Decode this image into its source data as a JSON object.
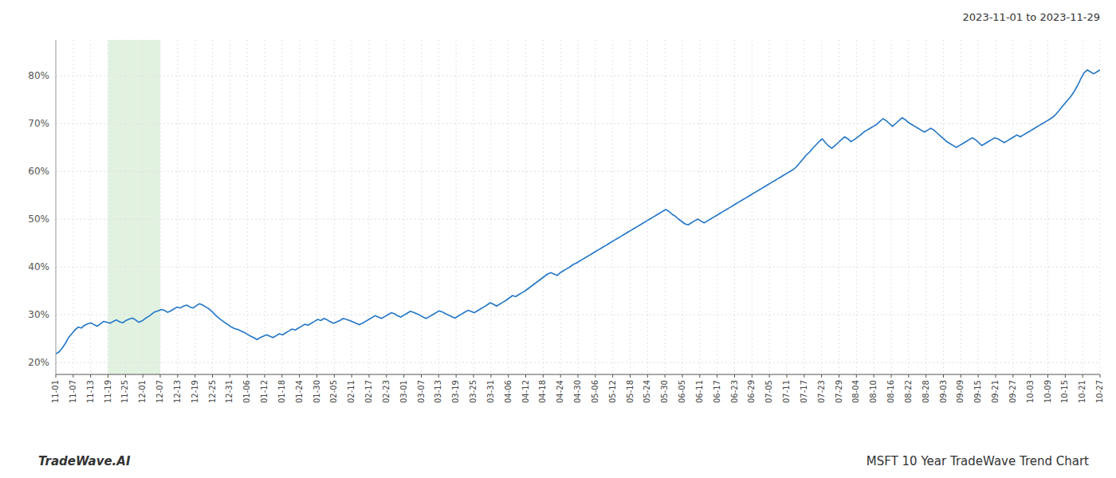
{
  "chart_data": {
    "type": "line",
    "title": "2023-11-01 to 2023-11-29",
    "annotations": [
      "TradeWave.AI",
      "MSFT 10 Year TradeWave Trend Chart"
    ],
    "color": "#2176c7",
    "grid": true,
    "band": {
      "x": [
        16.35,
        32.7
      ],
      "color": "#d4ecd4"
    },
    "xlim": [
      0,
      327
    ],
    "xticks": [
      {
        "value": 0,
        "label": "11-01"
      },
      {
        "value": 5.45,
        "label": "11-07"
      },
      {
        "value": 10.9,
        "label": "11-13"
      },
      {
        "value": 16.35,
        "label": "11-19"
      },
      {
        "value": 21.8,
        "label": "11-25"
      },
      {
        "value": 27.25,
        "label": "12-01"
      },
      {
        "value": 32.7,
        "label": "12-07"
      },
      {
        "value": 38.15,
        "label": "12-13"
      },
      {
        "value": 43.6,
        "label": "12-19"
      },
      {
        "value": 49.05,
        "label": "12-25"
      },
      {
        "value": 54.5,
        "label": "12-31"
      },
      {
        "value": 59.95,
        "label": "01-06"
      },
      {
        "value": 65.4,
        "label": "01-12"
      },
      {
        "value": 70.85,
        "label": "01-18"
      },
      {
        "value": 76.3,
        "label": "01-24"
      },
      {
        "value": 81.75,
        "label": "01-30"
      },
      {
        "value": 87.2,
        "label": "02-05"
      },
      {
        "value": 92.65,
        "label": "02-11"
      },
      {
        "value": 98.1,
        "label": "02-17"
      },
      {
        "value": 103.55,
        "label": "02-23"
      },
      {
        "value": 109,
        "label": "03-01"
      },
      {
        "value": 114.45,
        "label": "03-07"
      },
      {
        "value": 119.9,
        "label": "03-13"
      },
      {
        "value": 125.35,
        "label": "03-19"
      },
      {
        "value": 130.8,
        "label": "03-25"
      },
      {
        "value": 136.25,
        "label": "03-31"
      },
      {
        "value": 141.7,
        "label": "04-06"
      },
      {
        "value": 147.15,
        "label": "04-12"
      },
      {
        "value": 152.6,
        "label": "04-18"
      },
      {
        "value": 158.05,
        "label": "04-24"
      },
      {
        "value": 163.5,
        "label": "04-30"
      },
      {
        "value": 168.95,
        "label": "05-06"
      },
      {
        "value": 174.4,
        "label": "05-12"
      },
      {
        "value": 179.85,
        "label": "05-18"
      },
      {
        "value": 185.3,
        "label": "05-24"
      },
      {
        "value": 190.75,
        "label": "05-30"
      },
      {
        "value": 196.2,
        "label": "06-05"
      },
      {
        "value": 201.65,
        "label": "06-11"
      },
      {
        "value": 207.1,
        "label": "06-17"
      },
      {
        "value": 212.55,
        "label": "06-23"
      },
      {
        "value": 218,
        "label": "06-29"
      },
      {
        "value": 223.45,
        "label": "07-05"
      },
      {
        "value": 228.9,
        "label": "07-11"
      },
      {
        "value": 234.35,
        "label": "07-17"
      },
      {
        "value": 239.8,
        "label": "07-23"
      },
      {
        "value": 245.25,
        "label": "07-29"
      },
      {
        "value": 250.7,
        "label": "08-04"
      },
      {
        "value": 256.15,
        "label": "08-10"
      },
      {
        "value": 261.6,
        "label": "08-16"
      },
      {
        "value": 267.05,
        "label": "08-22"
      },
      {
        "value": 272.5,
        "label": "08-28"
      },
      {
        "value": 277.95,
        "label": "09-03"
      },
      {
        "value": 283.4,
        "label": "09-09"
      },
      {
        "value": 288.85,
        "label": "09-15"
      },
      {
        "value": 294.3,
        "label": "09-21"
      },
      {
        "value": 299.75,
        "label": "09-27"
      },
      {
        "value": 305.2,
        "label": "10-03"
      },
      {
        "value": 310.65,
        "label": "10-09"
      },
      {
        "value": 316.1,
        "label": "10-15"
      },
      {
        "value": 321.55,
        "label": "10-21"
      },
      {
        "value": 327,
        "label": "10-27"
      }
    ],
    "ylim": [
      0.175,
      0.875
    ],
    "yticks": [
      {
        "value": 0.2,
        "label": "20%"
      },
      {
        "value": 0.3,
        "label": "30%"
      },
      {
        "value": 0.4,
        "label": "40%"
      },
      {
        "value": 0.5,
        "label": "50%"
      },
      {
        "value": 0.6,
        "label": "60%"
      },
      {
        "value": 0.7,
        "label": "70%"
      },
      {
        "value": 0.8,
        "label": "80%"
      }
    ],
    "x": [
      0,
      1,
      2,
      3,
      4,
      5,
      6,
      7,
      8,
      9,
      10,
      11,
      12,
      13,
      14,
      15,
      16,
      17,
      18,
      19,
      20,
      21,
      22,
      23,
      24,
      25,
      26,
      27,
      28,
      29,
      30,
      31,
      32,
      33,
      34,
      35,
      36,
      37,
      38,
      39,
      40,
      41,
      42,
      43,
      44,
      45,
      46,
      47,
      48,
      49,
      50,
      51,
      52,
      53,
      54,
      55,
      56,
      57,
      58,
      59,
      60,
      61,
      62,
      63,
      64,
      65,
      66,
      67,
      68,
      69,
      70,
      71,
      72,
      73,
      74,
      75,
      76,
      77,
      78,
      79,
      80,
      81,
      82,
      83,
      84,
      85,
      86,
      87,
      88,
      89,
      90,
      91,
      92,
      93,
      94,
      95,
      96,
      97,
      98,
      99,
      100,
      101,
      102,
      103,
      104,
      105,
      106,
      107,
      108,
      109,
      110,
      111,
      112,
      113,
      114,
      115,
      116,
      117,
      118,
      119,
      120,
      121,
      122,
      123,
      124,
      125,
      126,
      127,
      128,
      129,
      130,
      131,
      132,
      133,
      134,
      135,
      136,
      137,
      138,
      139,
      140,
      141,
      142,
      143,
      144,
      145,
      146,
      147,
      148,
      149,
      150,
      151,
      152,
      153,
      154,
      155,
      156,
      157,
      158,
      159,
      160,
      161,
      162,
      163,
      164,
      165,
      166,
      167,
      168,
      169,
      170,
      171,
      172,
      173,
      174,
      175,
      176,
      177,
      178,
      179,
      180,
      181,
      182,
      183,
      184,
      185,
      186,
      187,
      188,
      189,
      190,
      191,
      192,
      193,
      194,
      195,
      196,
      197,
      198,
      199,
      200,
      201,
      202,
      203,
      204,
      205,
      206,
      207,
      208,
      209,
      210,
      211,
      212,
      213,
      214,
      215,
      216,
      217,
      218,
      219,
      220,
      221,
      222,
      223,
      224,
      225,
      226,
      227,
      228,
      229,
      230,
      231,
      232,
      233,
      234,
      235,
      236,
      237,
      238,
      239,
      240,
      241,
      242,
      243,
      244,
      245,
      246,
      247,
      248,
      249,
      250,
      251,
      252,
      253,
      254,
      255,
      256,
      257,
      258,
      259,
      260,
      261,
      262,
      263,
      264,
      265,
      266,
      267,
      268,
      269,
      270,
      271,
      272,
      273,
      274,
      275,
      276,
      277,
      278,
      279,
      280,
      281,
      282,
      283,
      284,
      285,
      286,
      287,
      288,
      289,
      290,
      291,
      292,
      293,
      294,
      295,
      296,
      297,
      298,
      299,
      300,
      301,
      302,
      303,
      304,
      305,
      306,
      307,
      308,
      309,
      310,
      311,
      312,
      313,
      314,
      315,
      316,
      317,
      318,
      319,
      320,
      321,
      322,
      323,
      324,
      325,
      326,
      327
    ],
    "values": [
      0.218,
      0.222,
      0.23,
      0.24,
      0.252,
      0.26,
      0.268,
      0.274,
      0.272,
      0.278,
      0.281,
      0.283,
      0.279,
      0.276,
      0.281,
      0.286,
      0.284,
      0.282,
      0.286,
      0.289,
      0.285,
      0.283,
      0.288,
      0.291,
      0.293,
      0.289,
      0.284,
      0.287,
      0.292,
      0.296,
      0.301,
      0.306,
      0.308,
      0.311,
      0.309,
      0.305,
      0.308,
      0.312,
      0.316,
      0.314,
      0.318,
      0.32,
      0.316,
      0.314,
      0.319,
      0.323,
      0.32,
      0.316,
      0.312,
      0.306,
      0.299,
      0.293,
      0.288,
      0.283,
      0.279,
      0.274,
      0.271,
      0.269,
      0.266,
      0.263,
      0.259,
      0.255,
      0.252,
      0.248,
      0.252,
      0.255,
      0.258,
      0.255,
      0.252,
      0.256,
      0.26,
      0.258,
      0.262,
      0.266,
      0.27,
      0.268,
      0.272,
      0.276,
      0.28,
      0.278,
      0.282,
      0.286,
      0.29,
      0.288,
      0.292,
      0.289,
      0.285,
      0.282,
      0.285,
      0.288,
      0.292,
      0.29,
      0.288,
      0.285,
      0.282,
      0.279,
      0.282,
      0.286,
      0.29,
      0.294,
      0.298,
      0.295,
      0.292,
      0.296,
      0.3,
      0.304,
      0.302,
      0.298,
      0.295,
      0.299,
      0.303,
      0.307,
      0.305,
      0.302,
      0.299,
      0.295,
      0.292,
      0.296,
      0.3,
      0.304,
      0.308,
      0.306,
      0.302,
      0.299,
      0.296,
      0.293,
      0.297,
      0.301,
      0.305,
      0.309,
      0.307,
      0.304,
      0.308,
      0.312,
      0.316,
      0.32,
      0.325,
      0.322,
      0.318,
      0.322,
      0.326,
      0.33,
      0.335,
      0.34,
      0.338,
      0.342,
      0.346,
      0.35,
      0.355,
      0.36,
      0.365,
      0.37,
      0.375,
      0.38,
      0.385,
      0.388,
      0.385,
      0.382,
      0.388,
      0.392,
      0.396,
      0.4,
      0.405,
      0.408,
      0.412,
      0.416,
      0.42,
      0.424,
      0.428,
      0.432,
      0.436,
      0.44,
      0.444,
      0.448,
      0.452,
      0.456,
      0.46,
      0.464,
      0.468,
      0.472,
      0.476,
      0.48,
      0.484,
      0.488,
      0.492,
      0.496,
      0.5,
      0.504,
      0.508,
      0.512,
      0.516,
      0.52,
      0.516,
      0.51,
      0.506,
      0.5,
      0.495,
      0.49,
      0.488,
      0.492,
      0.496,
      0.5,
      0.496,
      0.492,
      0.496,
      0.5,
      0.504,
      0.508,
      0.512,
      0.516,
      0.52,
      0.524,
      0.528,
      0.532,
      0.536,
      0.54,
      0.544,
      0.548,
      0.552,
      0.556,
      0.56,
      0.564,
      0.568,
      0.572,
      0.576,
      0.58,
      0.584,
      0.588,
      0.592,
      0.596,
      0.6,
      0.604,
      0.61,
      0.618,
      0.626,
      0.634,
      0.64,
      0.648,
      0.655,
      0.662,
      0.668,
      0.66,
      0.653,
      0.648,
      0.654,
      0.66,
      0.666,
      0.672,
      0.668,
      0.662,
      0.666,
      0.671,
      0.676,
      0.682,
      0.686,
      0.69,
      0.694,
      0.698,
      0.704,
      0.71,
      0.706,
      0.7,
      0.694,
      0.7,
      0.706,
      0.712,
      0.708,
      0.702,
      0.698,
      0.694,
      0.69,
      0.686,
      0.682,
      0.686,
      0.69,
      0.686,
      0.68,
      0.674,
      0.668,
      0.662,
      0.658,
      0.654,
      0.65,
      0.654,
      0.658,
      0.662,
      0.666,
      0.67,
      0.666,
      0.66,
      0.654,
      0.658,
      0.662,
      0.666,
      0.67,
      0.668,
      0.664,
      0.66,
      0.664,
      0.668,
      0.672,
      0.676,
      0.672,
      0.676,
      0.68,
      0.684,
      0.688,
      0.692,
      0.696,
      0.7,
      0.704,
      0.708,
      0.712,
      0.718,
      0.726,
      0.734,
      0.742,
      0.75,
      0.758,
      0.768,
      0.78,
      0.794,
      0.806,
      0.812,
      0.808,
      0.804,
      0.808,
      0.812
    ]
  }
}
